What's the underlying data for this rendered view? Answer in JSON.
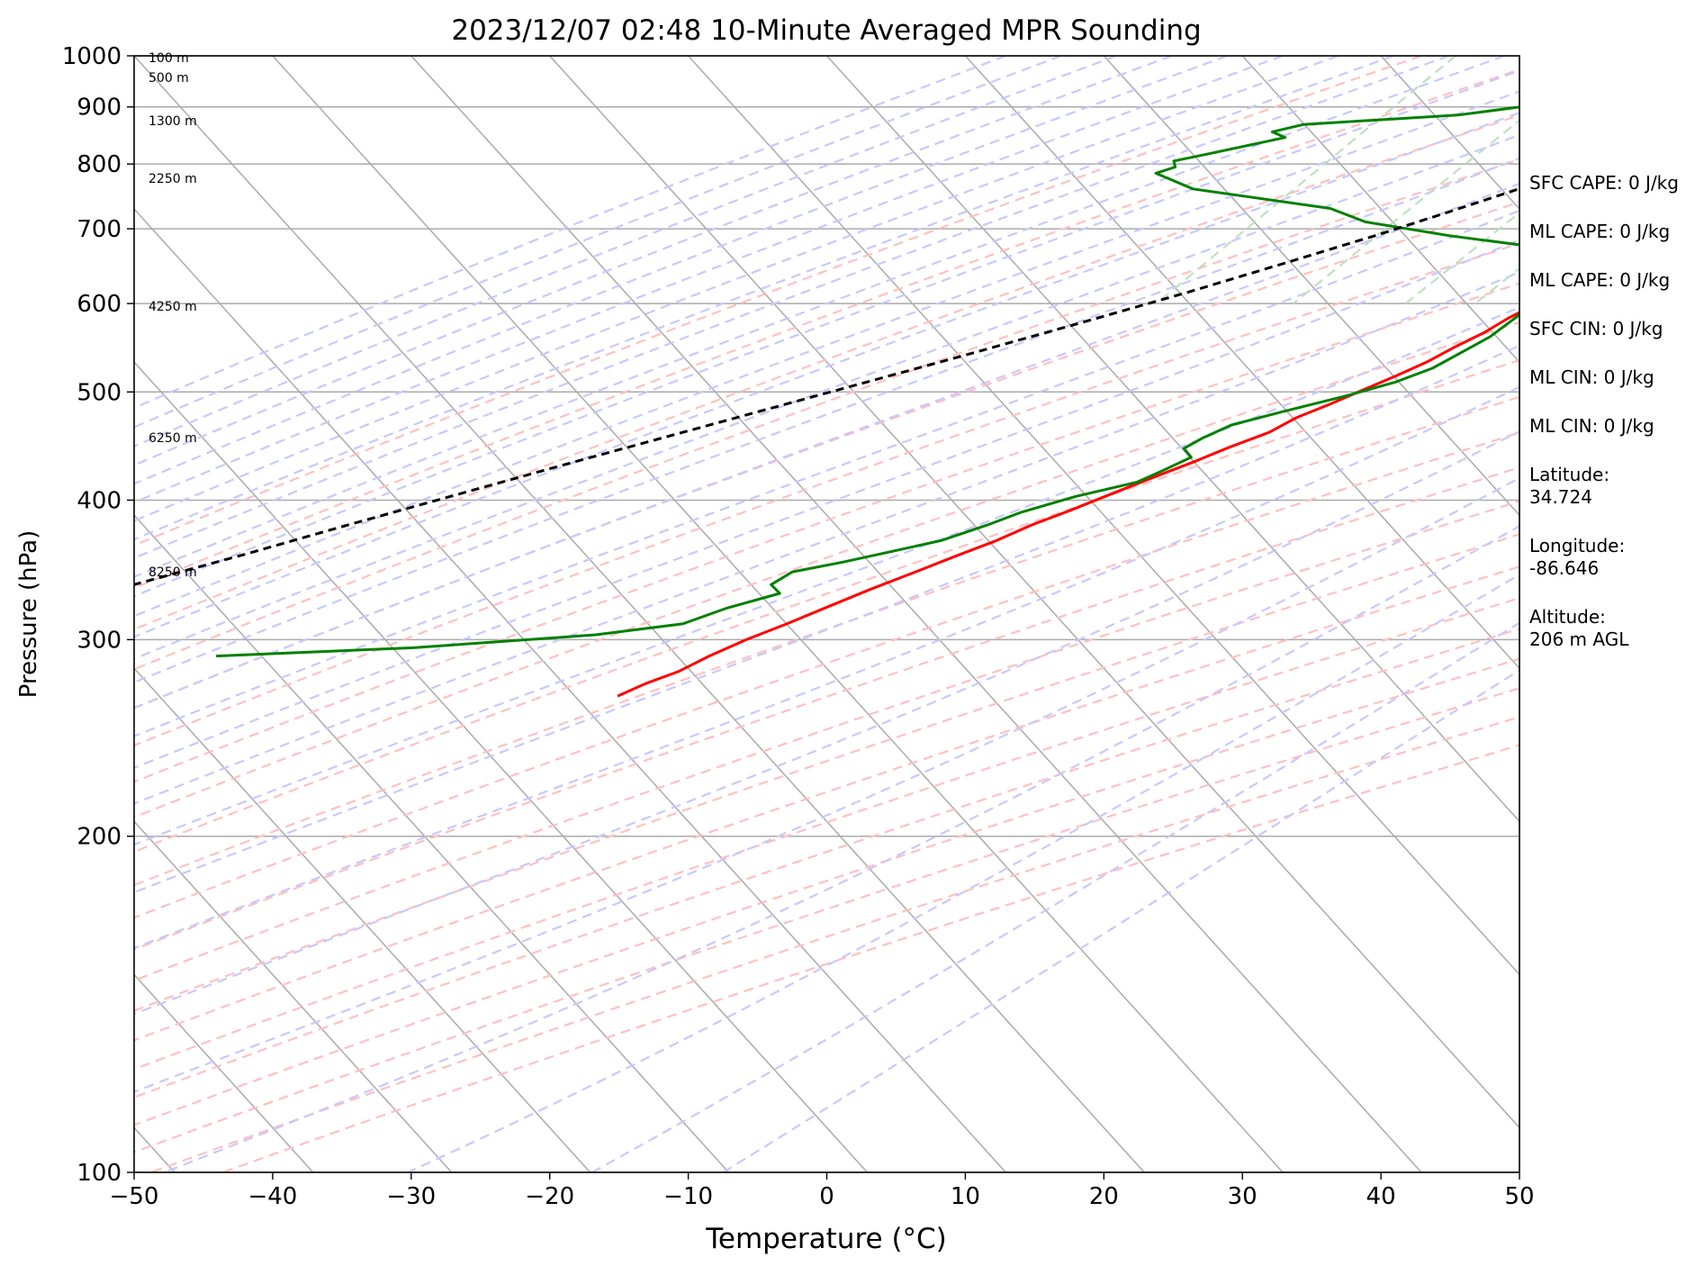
{
  "chart_data": {
    "type": "line",
    "title": "2023/12/07 02:48 10-Minute Averaged MPR Sounding",
    "xlabel": "Temperature (°C)",
    "ylabel": "Pressure (hPa)",
    "xlim": [
      -50,
      50
    ],
    "ylim": [
      1000,
      100
    ],
    "yscale": "log",
    "skew": true,
    "grid": true,
    "x_ticks": [
      -50,
      -40,
      -30,
      -20,
      -10,
      0,
      10,
      20,
      30,
      40,
      50
    ],
    "y_ticks": [
      100,
      200,
      300,
      400,
      500,
      600,
      700,
      800,
      900,
      1000
    ],
    "height_labels": [
      {
        "text": "8250 m",
        "p": 345
      },
      {
        "text": "6250 m",
        "p": 455
      },
      {
        "text": "4250 m",
        "p": 597
      },
      {
        "text": "2250 m",
        "p": 777
      },
      {
        "text": "1300 m",
        "p": 875
      },
      {
        "text": "500 m",
        "p": 956
      },
      {
        "text": "100 m",
        "p": 996
      }
    ],
    "series": [
      {
        "role": "temperature",
        "color": "#ff0000",
        "points": [
          [
            5.2,
            1000
          ],
          [
            5.6,
            990
          ],
          [
            4.8,
            975
          ],
          [
            4.6,
            960
          ],
          [
            5.3,
            945
          ],
          [
            6.5,
            930
          ],
          [
            7.6,
            912
          ],
          [
            8.7,
            890
          ],
          [
            9.2,
            867
          ],
          [
            9.1,
            845
          ],
          [
            9.3,
            815
          ],
          [
            8.7,
            786
          ],
          [
            7.6,
            760
          ],
          [
            5.4,
            735
          ],
          [
            2.6,
            710
          ],
          [
            1.1,
            690
          ],
          [
            0.0,
            670
          ],
          [
            -1.8,
            650
          ],
          [
            -3.4,
            632
          ],
          [
            -4.4,
            615
          ],
          [
            -5.6,
            598
          ],
          [
            -6.6,
            582
          ],
          [
            -7.4,
            565
          ],
          [
            -8.6,
            548
          ],
          [
            -9.6,
            532
          ],
          [
            -10.9,
            517
          ],
          [
            -12.4,
            502
          ],
          [
            -13.8,
            488
          ],
          [
            -15.4,
            474
          ],
          [
            -16.4,
            460
          ],
          [
            -18.3,
            446
          ],
          [
            -19.9,
            433
          ],
          [
            -21.7,
            420
          ],
          [
            -23.8,
            405
          ],
          [
            -25.6,
            392
          ],
          [
            -27.5,
            380
          ],
          [
            -29.0,
            368
          ],
          [
            -31.0,
            356
          ],
          [
            -32.8,
            345
          ],
          [
            -34.9,
            333
          ],
          [
            -36.7,
            322
          ],
          [
            -38.7,
            310
          ],
          [
            -40.6,
            300
          ],
          [
            -42.2,
            290
          ],
          [
            -43.4,
            281
          ],
          [
            -45.0,
            274
          ],
          [
            -46.2,
            267
          ]
        ]
      },
      {
        "role": "dewpoint",
        "color": "#008000",
        "points": [
          [
            -2.2,
            1000
          ],
          [
            -2.9,
            990
          ],
          [
            -5.1,
            980
          ],
          [
            -5.5,
            970
          ],
          [
            -6.3,
            957
          ],
          [
            -7.0,
            947
          ],
          [
            -10.3,
            930
          ],
          [
            -19.5,
            900
          ],
          [
            -23.5,
            885
          ],
          [
            -34.0,
            868
          ],
          [
            -35.8,
            855
          ],
          [
            -34.5,
            845
          ],
          [
            -39.3,
            815
          ],
          [
            -41.0,
            805
          ],
          [
            -40.5,
            795
          ],
          [
            -41.5,
            785
          ],
          [
            -37.8,
            760
          ],
          [
            -26.6,
            730
          ],
          [
            -23.2,
            710
          ],
          [
            -16.2,
            690
          ],
          [
            -5.1,
            665
          ],
          [
            -0.2,
            652
          ],
          [
            -2.9,
            642
          ],
          [
            -3.8,
            635
          ],
          [
            -4.5,
            620
          ],
          [
            -5.0,
            608
          ],
          [
            -5.9,
            590
          ],
          [
            -6.7,
            560
          ],
          [
            -8.0,
            538
          ],
          [
            -8.8,
            525
          ],
          [
            -10.6,
            510
          ],
          [
            -13.2,
            496
          ],
          [
            -16.8,
            480
          ],
          [
            -19.6,
            467
          ],
          [
            -20.8,
            455
          ],
          [
            -21.5,
            445
          ],
          [
            -20.4,
            437
          ],
          [
            -21.6,
            425
          ],
          [
            -22.7,
            415
          ],
          [
            -26.2,
            403
          ],
          [
            -29.1,
            390
          ],
          [
            -30.7,
            380
          ],
          [
            -33.0,
            368
          ],
          [
            -35.8,
            360
          ],
          [
            -38.7,
            352
          ],
          [
            -41.7,
            345
          ],
          [
            -42.4,
            336
          ],
          [
            -41.2,
            330
          ],
          [
            -44.1,
            320
          ],
          [
            -46.2,
            310
          ],
          [
            -51.8,
            303
          ],
          [
            -64.1,
            295
          ],
          [
            -77.8,
            290
          ]
        ]
      },
      {
        "role": "parcel",
        "color": "#000000",
        "dashed": true,
        "points": [
          [
            4.5,
            1000
          ],
          [
            1.8,
            965
          ],
          [
            -0.7,
            930
          ],
          [
            -2.6,
            900
          ],
          [
            -5.8,
            860
          ],
          [
            -9.3,
            815
          ],
          [
            -13.3,
            770
          ],
          [
            -17.8,
            725
          ],
          [
            -21.6,
            690
          ],
          [
            -26.6,
            650
          ],
          [
            -31.3,
            615
          ],
          [
            -37.4,
            575
          ],
          [
            -43.8,
            537
          ],
          [
            -50.7,
            500
          ],
          [
            -57.7,
            465
          ],
          [
            -64.8,
            432
          ],
          [
            -71.1,
            404
          ],
          [
            -77.1,
            379
          ],
          [
            -82.3,
            358
          ],
          [
            -88.1,
            337
          ],
          [
            -93.4,
            318
          ],
          [
            -97.1,
            305
          ],
          [
            -103.1,
            286
          ],
          [
            -108.9,
            268
          ]
        ]
      }
    ],
    "annotations": [
      "SFC CAPE: 0 J/kg",
      "ML CAPE: 0 J/kg",
      "ML CAPE: 0 J/kg",
      "SFC CIN: 0 J/kg",
      "ML CIN: 0 J/kg",
      "ML CIN: 0 J/kg",
      "Latitude:\n34.724",
      "Longitude:\n-86.646",
      "Altitude:\n206 m AGL"
    ],
    "colors": {
      "isotherm": "#aaaaaa",
      "dry_adiabat": "#ffc0c0",
      "moist_adiabat": "#c8c8ff",
      "mixing_ratio": "#bfe0bf"
    }
  }
}
